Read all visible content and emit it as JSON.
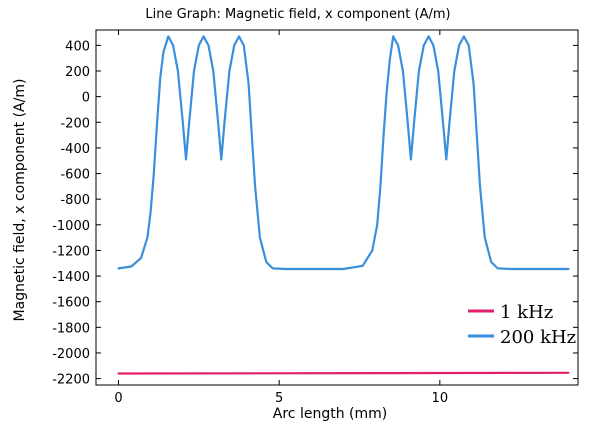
{
  "chart_data": {
    "type": "line",
    "title": "Line Graph: Magnetic field, x component (A/m)",
    "xlabel": "Arc length (mm)",
    "ylabel": "Magnetic field, x component (A/m)",
    "xlim": [
      -0.7,
      14.3
    ],
    "ylim": [
      -2250,
      520
    ],
    "x_ticks": [
      0,
      5,
      10
    ],
    "y_ticks": [
      400,
      200,
      0,
      -200,
      -400,
      -600,
      -800,
      -1000,
      -1200,
      -1400,
      -1600,
      -1800,
      -2000,
      -2200
    ],
    "grid": false,
    "legend_position": "bottom-right",
    "series": [
      {
        "name": "1 kHz",
        "color": "#e0206a",
        "x": [
          0,
          14
        ],
        "y": [
          -2160,
          -2155
        ]
      },
      {
        "name": "200 kHz",
        "color": "#3a8fdc",
        "x": [
          0,
          0.4,
          0.7,
          0.9,
          1.0,
          1.1,
          1.2,
          1.3,
          1.4,
          1.55,
          1.7,
          1.85,
          2.0,
          2.1,
          2.2,
          2.35,
          2.5,
          2.65,
          2.8,
          2.95,
          3.1,
          3.2,
          3.3,
          3.45,
          3.6,
          3.75,
          3.9,
          4.05,
          4.15,
          4.25,
          4.4,
          4.6,
          4.8,
          5.2,
          6.0,
          7.0,
          7.6,
          7.9,
          8.05,
          8.15,
          8.25,
          8.35,
          8.45,
          8.55,
          8.7,
          8.85,
          9.0,
          9.1,
          9.2,
          9.35,
          9.5,
          9.65,
          9.8,
          9.95,
          10.1,
          10.2,
          10.3,
          10.45,
          10.6,
          10.75,
          10.9,
          11.05,
          11.15,
          11.25,
          11.4,
          11.6,
          11.8,
          12.2,
          13.0,
          14.0
        ],
        "y": [
          -1340,
          -1325,
          -1260,
          -1100,
          -900,
          -600,
          -200,
          150,
          350,
          470,
          400,
          200,
          -200,
          -490,
          -200,
          200,
          400,
          470,
          400,
          200,
          -200,
          -490,
          -200,
          200,
          400,
          470,
          400,
          100,
          -300,
          -700,
          -1100,
          -1290,
          -1340,
          -1345,
          -1345,
          -1345,
          -1320,
          -1200,
          -1000,
          -700,
          -300,
          50,
          300,
          470,
          400,
          200,
          -200,
          -490,
          -200,
          200,
          400,
          470,
          400,
          200,
          -200,
          -490,
          -200,
          200,
          400,
          470,
          400,
          100,
          -300,
          -700,
          -1100,
          -1290,
          -1340,
          -1345,
          -1345,
          -1345
        ]
      }
    ]
  }
}
